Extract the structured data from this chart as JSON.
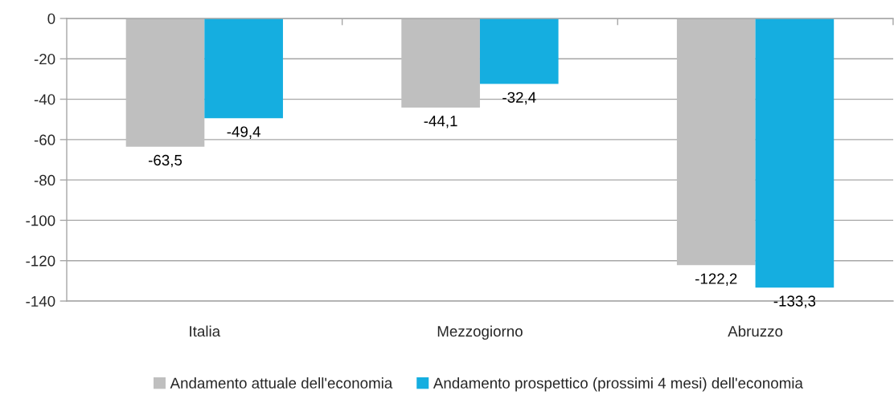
{
  "chart_data": {
    "type": "bar",
    "categories": [
      "Italia",
      "Mezzogiorno",
      "Abruzzo"
    ],
    "series": [
      {
        "name": "Andamento attuale dell'economia",
        "color": "#bfbfbf",
        "values": [
          -63.5,
          -44.1,
          -122.2
        ],
        "value_labels": [
          "-63,5",
          "-44,1",
          "-122,2"
        ]
      },
      {
        "name": "Andamento prospettico (prossimi 4 mesi) dell'economia",
        "color": "#15aee0",
        "values": [
          -49.4,
          -32.4,
          -133.3
        ],
        "value_labels": [
          "-49,4",
          "-32,4",
          "-133,3"
        ]
      }
    ],
    "ylim": [
      -140,
      0
    ],
    "yticks": [
      0,
      -20,
      -40,
      -60,
      -80,
      -100,
      -120,
      -140
    ],
    "grid": "y",
    "legend": "bottom"
  }
}
